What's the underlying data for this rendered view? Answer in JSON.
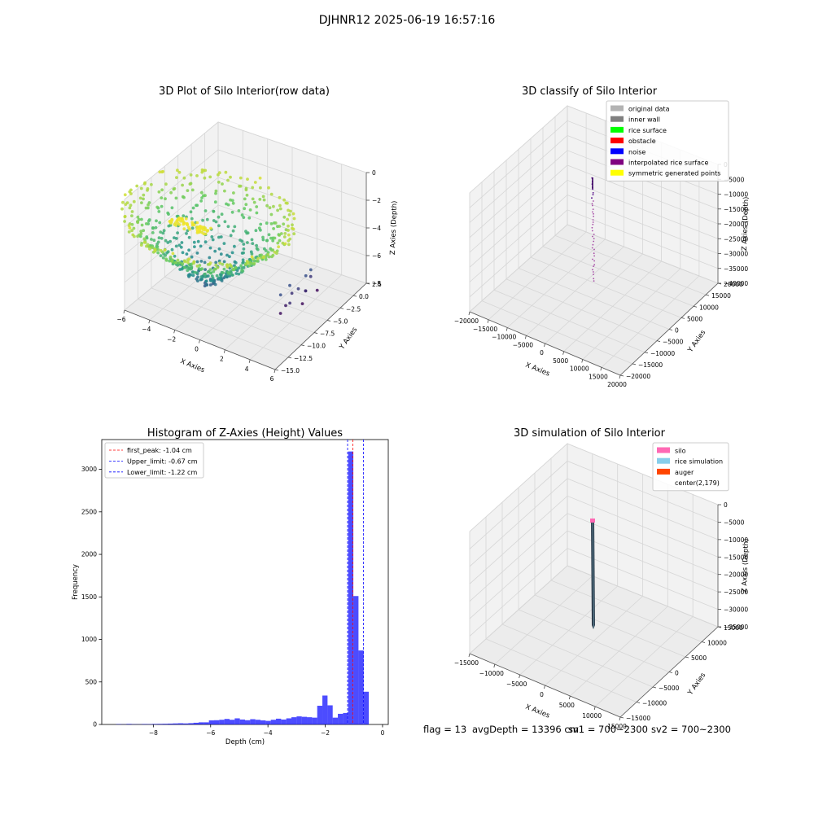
{
  "suptitle": "DJHNR12 2025-06-19 16:57:16",
  "footer": {
    "flag": "flag = 13",
    "avg_depth": "avgDepth = 13396 cm",
    "sv1": "sv1 = 700~2300",
    "sv2": "sv2 = 700~2300"
  },
  "chart_data": [
    {
      "type": "scatter",
      "title": "3D Plot of Silo Interior(row data)",
      "xlabel": "X Axies",
      "ylabel": "Y Axies",
      "zlabel": "Z Axies (Depth)",
      "xlim": [
        -6,
        6
      ],
      "ylim": [
        -15,
        2.5
      ],
      "zlim": [
        -9,
        0
      ],
      "x_ticks": [
        "−6",
        "−4",
        "−2",
        "0",
        "2",
        "4",
        "6"
      ],
      "y_ticks": [
        "−15.0",
        "−12.5",
        "−10.0",
        "−7.5",
        "−5.0",
        "−2.5",
        "0.0",
        "2.5"
      ],
      "z_ticks": [
        "−8",
        "−6",
        "−4",
        "−2",
        "0"
      ],
      "colormap": [
        "#440154",
        "#3b528b",
        "#21918c",
        "#5ec962",
        "#fde725"
      ]
    },
    {
      "type": "scatter",
      "title": "3D classify of Silo Interior",
      "xlabel": "X Axies",
      "ylabel": "Y Axies",
      "zlabel": "Z Axies (Depth)",
      "x_ticks": [
        "−20000",
        "−15000",
        "−10000",
        "−5000",
        "0",
        "5000",
        "10000",
        "15000",
        "20000"
      ],
      "y_ticks": [
        "−20000",
        "−15000",
        "−10000",
        "−5000",
        "0",
        "5000",
        "10000",
        "15000",
        "20000"
      ],
      "z_ticks": [
        "−40000",
        "−35000",
        "−30000",
        "−25000",
        "−20000",
        "−15000",
        "−10000",
        "−5000",
        "0"
      ],
      "legend_position": "top-right",
      "legend": [
        {
          "name": "original data",
          "color": "#b3b3b3"
        },
        {
          "name": "inner wall",
          "color": "#808080"
        },
        {
          "name": "rice surface",
          "color": "#00ff00"
        },
        {
          "name": "obstacle",
          "color": "#ff0000"
        },
        {
          "name": "noise",
          "color": "#0000ff"
        },
        {
          "name": "interpolated rice surface",
          "color": "#800080"
        },
        {
          "name": "symmetric generated points",
          "color": "#ffff00"
        }
      ]
    },
    {
      "type": "bar",
      "title": "Histogram of Z-Axies (Height) Values",
      "xlabel": "Depth (cm)",
      "ylabel": "Frequency",
      "xlim": [
        -9.8,
        0.2
      ],
      "ylim": [
        0,
        3350
      ],
      "x_ticks": [
        "−8",
        "−6",
        "−4",
        "−2",
        "0"
      ],
      "y_ticks": [
        "0",
        "500",
        "1000",
        "1500",
        "2000",
        "2500",
        "3000"
      ],
      "bar_color": "#0000ff",
      "bin_width": 0.18,
      "bins_start": [
        -9.3,
        -9.12,
        -8.94,
        -8.76,
        -8.58,
        -8.4,
        -8.22,
        -8.04,
        -7.86,
        -7.68,
        -7.5,
        -7.32,
        -7.14,
        -6.96,
        -6.78,
        -6.6,
        -6.42,
        -6.24,
        -6.06,
        -5.88,
        -5.7,
        -5.52,
        -5.34,
        -5.16,
        -4.98,
        -4.8,
        -4.62,
        -4.44,
        -4.26,
        -4.08,
        -3.9,
        -3.72,
        -3.54,
        -3.36,
        -3.18,
        -3.0,
        -2.82,
        -2.64,
        -2.46,
        -2.28,
        -2.1,
        -1.92,
        -1.74,
        -1.56,
        -1.38,
        -1.2,
        -1.02,
        -0.84,
        -0.66
      ],
      "values": [
        4,
        2,
        6,
        3,
        2,
        5,
        4,
        6,
        7,
        8,
        10,
        12,
        14,
        12,
        15,
        20,
        25,
        25,
        48,
        50,
        55,
        65,
        55,
        72,
        58,
        50,
        62,
        55,
        48,
        42,
        55,
        68,
        58,
        72,
        85,
        95,
        90,
        85,
        80,
        220,
        340,
        225,
        80,
        125,
        135,
        3210,
        1510,
        870,
        385
      ],
      "legend_position": "top-left",
      "vlines": [
        {
          "label": "first_peak: -1.04 cm",
          "x": -1.04,
          "color": "#ff0000"
        },
        {
          "label": "Upper_limit: -0.67 cm",
          "x": -0.67,
          "color": "#0000ff"
        },
        {
          "label": "Lower_limit: -1.22 cm",
          "x": -1.22,
          "color": "#0000ff"
        }
      ]
    },
    {
      "type": "scatter",
      "title": "3D simulation of Silo Interior",
      "xlabel": "X Axies",
      "ylabel": "Y Axies",
      "zlabel": "Z Axies (Depth)",
      "x_ticks": [
        "−15000",
        "−10000",
        "−5000",
        "0",
        "5000",
        "10000",
        "15000"
      ],
      "y_ticks": [
        "−15000",
        "−10000",
        "−5000",
        "0",
        "5000",
        "10000",
        "15000"
      ],
      "z_ticks": [
        "−35000",
        "−30000",
        "−25000",
        "−20000",
        "−15000",
        "−10000",
        "−5000",
        "0"
      ],
      "legend_position": "top-right",
      "legend": [
        {
          "name": "silo",
          "color": "#ff69b4"
        },
        {
          "name": "rice simulation",
          "color": "#87ceeb"
        },
        {
          "name": "auger",
          "color": "#ff4500"
        },
        {
          "name": "center(2,179)",
          "color": "none"
        }
      ]
    }
  ]
}
